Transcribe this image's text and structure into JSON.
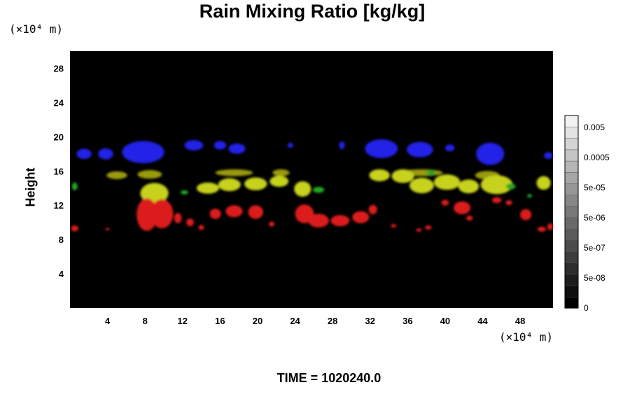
{
  "chart_data": {
    "type": "heatmap",
    "title": "Rain Mixing Ratio [kg/kg]",
    "ylabel": "Height",
    "xlabel": "",
    "y_unit": "(×10⁴ m)",
    "x_unit": "(×10⁴ m)",
    "xlim": [
      0,
      51.5
    ],
    "ylim": [
      0,
      30
    ],
    "x_ticks": [
      "4",
      "8",
      "12",
      "16",
      "20",
      "24",
      "28",
      "32",
      "36",
      "40",
      "44",
      "48"
    ],
    "y_ticks": [
      "4",
      "8",
      "12",
      "16",
      "20",
      "24",
      "28"
    ],
    "background_color": "#000000",
    "colorbar": {
      "labels": [
        "0",
        "5e-08",
        "5e-07",
        "5e-06",
        "5e-05",
        "0.0005",
        "0.005"
      ],
      "levels": 17,
      "color_low": "#000000",
      "color_high": "#f2f2f2"
    },
    "series": [
      {
        "color": "#2323e8",
        "blobs": [
          {
            "x": 1.5,
            "y": 18.0,
            "w": 1.6,
            "h": 1.2
          },
          {
            "x": 3.8,
            "y": 18.0,
            "w": 1.6,
            "h": 1.3
          },
          {
            "x": 7.8,
            "y": 18.2,
            "w": 4.5,
            "h": 2.6
          },
          {
            "x": 13.2,
            "y": 19.0,
            "w": 2.0,
            "h": 1.2
          },
          {
            "x": 16.0,
            "y": 19.0,
            "w": 1.3,
            "h": 1.0
          },
          {
            "x": 17.8,
            "y": 18.6,
            "w": 1.8,
            "h": 1.2
          },
          {
            "x": 23.5,
            "y": 19.0,
            "w": 0.6,
            "h": 0.6
          },
          {
            "x": 29.0,
            "y": 19.0,
            "w": 0.6,
            "h": 0.9
          },
          {
            "x": 33.2,
            "y": 18.6,
            "w": 3.5,
            "h": 2.2
          },
          {
            "x": 37.3,
            "y": 18.5,
            "w": 2.8,
            "h": 1.8
          },
          {
            "x": 40.5,
            "y": 18.7,
            "w": 1.0,
            "h": 0.8
          },
          {
            "x": 44.8,
            "y": 18.0,
            "w": 3.0,
            "h": 2.6
          },
          {
            "x": 51.0,
            "y": 17.8,
            "w": 0.9,
            "h": 0.8
          }
        ]
      },
      {
        "color": "#9a9a10",
        "blobs": [
          {
            "x": 5.0,
            "y": 15.5,
            "w": 2.2,
            "h": 0.9
          },
          {
            "x": 8.5,
            "y": 15.6,
            "w": 2.6,
            "h": 1.0
          },
          {
            "x": 17.5,
            "y": 15.8,
            "w": 4.0,
            "h": 0.8
          },
          {
            "x": 22.5,
            "y": 15.8,
            "w": 1.8,
            "h": 0.8
          },
          {
            "x": 37.5,
            "y": 15.8,
            "w": 4.5,
            "h": 0.8
          },
          {
            "x": 44.5,
            "y": 15.5,
            "w": 2.6,
            "h": 1.0
          }
        ]
      },
      {
        "color": "#c6d21c",
        "blobs": [
          {
            "x": 9.0,
            "y": 13.4,
            "w": 3.0,
            "h": 2.4
          },
          {
            "x": 14.7,
            "y": 14.0,
            "w": 2.4,
            "h": 1.3
          },
          {
            "x": 17.0,
            "y": 14.4,
            "w": 2.4,
            "h": 1.5
          },
          {
            "x": 19.8,
            "y": 14.5,
            "w": 2.4,
            "h": 1.5
          },
          {
            "x": 22.3,
            "y": 14.8,
            "w": 2.0,
            "h": 1.3
          },
          {
            "x": 24.8,
            "y": 13.9,
            "w": 1.8,
            "h": 1.8
          },
          {
            "x": 33.0,
            "y": 15.5,
            "w": 2.2,
            "h": 1.4
          },
          {
            "x": 35.5,
            "y": 15.4,
            "w": 2.4,
            "h": 1.6
          },
          {
            "x": 37.5,
            "y": 14.3,
            "w": 2.6,
            "h": 1.8
          },
          {
            "x": 40.2,
            "y": 14.7,
            "w": 2.8,
            "h": 1.8
          },
          {
            "x": 42.5,
            "y": 14.2,
            "w": 2.2,
            "h": 1.6
          },
          {
            "x": 45.5,
            "y": 14.4,
            "w": 3.4,
            "h": 2.2
          },
          {
            "x": 50.5,
            "y": 14.6,
            "w": 1.5,
            "h": 1.6
          }
        ]
      },
      {
        "color": "#22a722",
        "blobs": [
          {
            "x": 0.5,
            "y": 14.2,
            "w": 0.6,
            "h": 0.9
          },
          {
            "x": 12.2,
            "y": 13.5,
            "w": 0.8,
            "h": 0.5
          },
          {
            "x": 26.5,
            "y": 13.8,
            "w": 1.2,
            "h": 0.7
          },
          {
            "x": 38.5,
            "y": 15.8,
            "w": 1.0,
            "h": 0.6
          },
          {
            "x": 47.0,
            "y": 14.2,
            "w": 1.0,
            "h": 0.7
          },
          {
            "x": 49.0,
            "y": 13.1,
            "w": 0.5,
            "h": 0.4
          }
        ]
      },
      {
        "color": "#dc1b1b",
        "blobs": [
          {
            "x": 0.5,
            "y": 9.3,
            "w": 0.8,
            "h": 0.7
          },
          {
            "x": 4.0,
            "y": 9.2,
            "w": 0.4,
            "h": 0.3
          },
          {
            "x": 8.2,
            "y": 10.9,
            "w": 2.2,
            "h": 3.8
          },
          {
            "x": 9.8,
            "y": 11.0,
            "w": 2.4,
            "h": 3.4
          },
          {
            "x": 11.5,
            "y": 10.5,
            "w": 0.8,
            "h": 1.2
          },
          {
            "x": 12.8,
            "y": 10.0,
            "w": 0.8,
            "h": 0.9
          },
          {
            "x": 14.0,
            "y": 9.4,
            "w": 0.6,
            "h": 0.6
          },
          {
            "x": 15.5,
            "y": 11.0,
            "w": 1.2,
            "h": 1.2
          },
          {
            "x": 17.5,
            "y": 11.3,
            "w": 1.8,
            "h": 1.4
          },
          {
            "x": 19.8,
            "y": 11.2,
            "w": 1.6,
            "h": 1.6
          },
          {
            "x": 21.5,
            "y": 9.8,
            "w": 0.6,
            "h": 0.6
          },
          {
            "x": 25.0,
            "y": 11.0,
            "w": 2.0,
            "h": 2.2
          },
          {
            "x": 26.5,
            "y": 10.2,
            "w": 2.2,
            "h": 1.6
          },
          {
            "x": 28.8,
            "y": 10.2,
            "w": 2.0,
            "h": 1.3
          },
          {
            "x": 31.0,
            "y": 10.6,
            "w": 1.8,
            "h": 1.4
          },
          {
            "x": 32.3,
            "y": 11.5,
            "w": 0.9,
            "h": 1.1
          },
          {
            "x": 34.5,
            "y": 9.6,
            "w": 0.6,
            "h": 0.4
          },
          {
            "x": 37.2,
            "y": 9.1,
            "w": 0.6,
            "h": 0.4
          },
          {
            "x": 38.2,
            "y": 9.4,
            "w": 0.7,
            "h": 0.5
          },
          {
            "x": 40.0,
            "y": 12.3,
            "w": 0.8,
            "h": 0.7
          },
          {
            "x": 41.8,
            "y": 11.7,
            "w": 1.8,
            "h": 1.5
          },
          {
            "x": 42.6,
            "y": 10.5,
            "w": 0.7,
            "h": 0.6
          },
          {
            "x": 45.5,
            "y": 12.6,
            "w": 1.0,
            "h": 0.7
          },
          {
            "x": 46.8,
            "y": 12.3,
            "w": 0.7,
            "h": 0.6
          },
          {
            "x": 48.6,
            "y": 10.9,
            "w": 1.2,
            "h": 1.3
          },
          {
            "x": 50.3,
            "y": 9.2,
            "w": 0.9,
            "h": 0.6
          },
          {
            "x": 51.2,
            "y": 9.5,
            "w": 0.6,
            "h": 0.8
          }
        ]
      }
    ]
  },
  "footer": {
    "time_label": "TIME = 1020240.0"
  }
}
